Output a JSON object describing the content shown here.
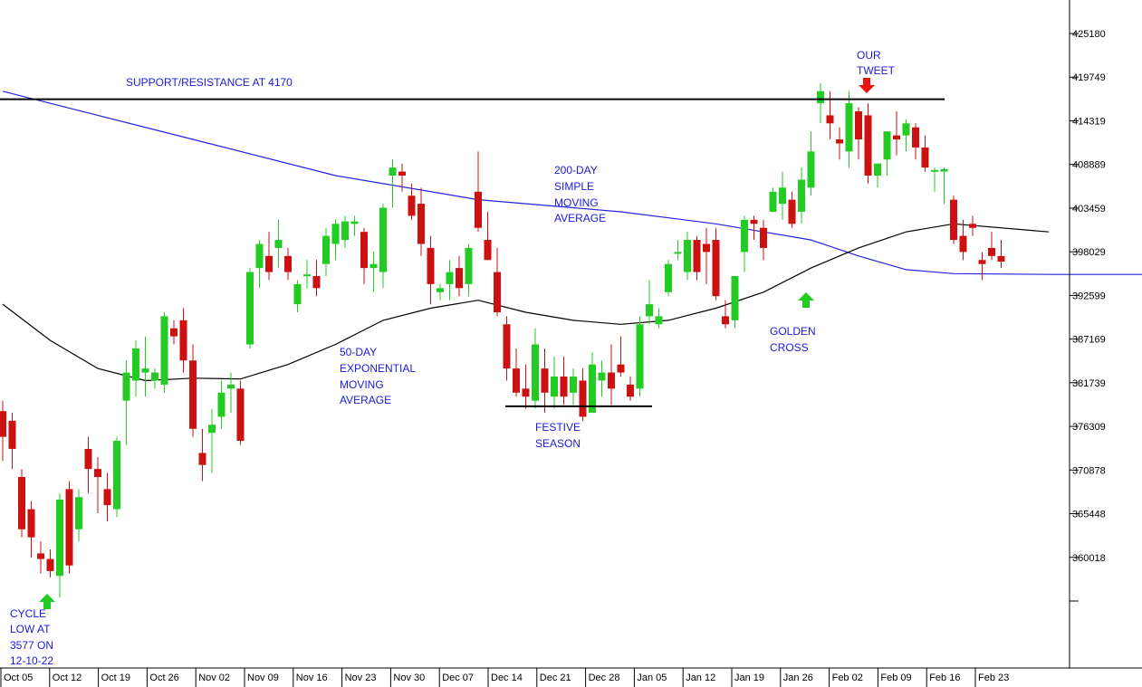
{
  "chart_data": {
    "type": "candlestick",
    "title": "",
    "ylim": [
      355000,
      430000
    ],
    "y_ticks": [
      "425180",
      "419749",
      "414319",
      "408889",
      "403459",
      "398029",
      "392599",
      "387169",
      "381739",
      "376309",
      "370878",
      "365448",
      "360018"
    ],
    "x_ticks": [
      "Oct 05",
      "Oct 12",
      "Oct 19",
      "Oct 26",
      "Nov 02",
      "Nov 09",
      "Nov 16",
      "Nov 23",
      "Nov 30",
      "Dec 07",
      "Dec 14",
      "Dec 21",
      "Dec 28",
      "Jan 05",
      "Jan 12",
      "Jan 19",
      "Jan 26",
      "Feb 02",
      "Feb 09",
      "Feb 16",
      "Feb 23"
    ],
    "colors": {
      "up": "#22cc22",
      "down": "#cc1111",
      "sma200": "#2222dd",
      "ema50": "#000000",
      "annotation": "#1a1adc",
      "arrow_up": "#22cc22",
      "arrow_down": "#ee1111"
    },
    "candles": [
      {
        "o": 378200,
        "h": 379500,
        "l": 372000,
        "c": 375000
      },
      {
        "o": 377000,
        "h": 378000,
        "l": 371000,
        "c": 373500
      },
      {
        "o": 370000,
        "h": 371000,
        "l": 362500,
        "c": 363500
      },
      {
        "o": 366000,
        "h": 367000,
        "l": 360000,
        "c": 362500
      },
      {
        "o": 360500,
        "h": 362000,
        "l": 358000,
        "c": 359800
      },
      {
        "o": 359800,
        "h": 361000,
        "l": 357500,
        "c": 358300
      },
      {
        "o": 357700,
        "h": 368000,
        "l": 355000,
        "c": 367200
      },
      {
        "o": 368500,
        "h": 369500,
        "l": 358000,
        "c": 359000
      },
      {
        "o": 363500,
        "h": 368500,
        "l": 362000,
        "c": 367500
      },
      {
        "o": 373500,
        "h": 375000,
        "l": 368000,
        "c": 371000
      },
      {
        "o": 371000,
        "h": 372500,
        "l": 365500,
        "c": 370000
      },
      {
        "o": 368500,
        "h": 370500,
        "l": 364500,
        "c": 366500
      },
      {
        "o": 366000,
        "h": 375000,
        "l": 365000,
        "c": 374500
      },
      {
        "o": 379500,
        "h": 384500,
        "l": 374000,
        "c": 383000
      },
      {
        "o": 382000,
        "h": 387000,
        "l": 380000,
        "c": 386000
      },
      {
        "o": 383000,
        "h": 387500,
        "l": 380000,
        "c": 383500
      },
      {
        "o": 382000,
        "h": 383500,
        "l": 381000,
        "c": 383000
      },
      {
        "o": 381500,
        "h": 390500,
        "l": 380500,
        "c": 390000
      },
      {
        "o": 388500,
        "h": 389500,
        "l": 386500,
        "c": 387500
      },
      {
        "o": 389500,
        "h": 391000,
        "l": 383000,
        "c": 384500
      },
      {
        "o": 384500,
        "h": 386500,
        "l": 375000,
        "c": 376000
      },
      {
        "o": 373000,
        "h": 376000,
        "l": 369500,
        "c": 371500
      },
      {
        "o": 375500,
        "h": 378500,
        "l": 370500,
        "c": 376500
      },
      {
        "o": 377500,
        "h": 382000,
        "l": 376000,
        "c": 380500
      },
      {
        "o": 381000,
        "h": 383000,
        "l": 378000,
        "c": 381500
      },
      {
        "o": 381000,
        "h": 382000,
        "l": 374000,
        "c": 374500
      },
      {
        "o": 386500,
        "h": 396000,
        "l": 386000,
        "c": 395500
      },
      {
        "o": 396000,
        "h": 399500,
        "l": 393500,
        "c": 399000
      },
      {
        "o": 397500,
        "h": 400500,
        "l": 394500,
        "c": 395500
      },
      {
        "o": 398500,
        "h": 402000,
        "l": 396000,
        "c": 399500
      },
      {
        "o": 397500,
        "h": 398500,
        "l": 394500,
        "c": 395500
      },
      {
        "o": 391500,
        "h": 394500,
        "l": 390500,
        "c": 394000
      },
      {
        "o": 395000,
        "h": 397000,
        "l": 393500,
        "c": 395200
      },
      {
        "o": 395000,
        "h": 397000,
        "l": 392500,
        "c": 393500
      },
      {
        "o": 396500,
        "h": 401000,
        "l": 395000,
        "c": 400000
      },
      {
        "o": 399000,
        "h": 402000,
        "l": 397000,
        "c": 401500
      },
      {
        "o": 399500,
        "h": 402500,
        "l": 398500,
        "c": 401800
      },
      {
        "o": 401500,
        "h": 402500,
        "l": 400000,
        "c": 401800
      },
      {
        "o": 400500,
        "h": 401000,
        "l": 394000,
        "c": 396000
      },
      {
        "o": 396000,
        "h": 398000,
        "l": 393000,
        "c": 396500
      },
      {
        "o": 395500,
        "h": 404000,
        "l": 393500,
        "c": 403500
      },
      {
        "o": 407500,
        "h": 409500,
        "l": 403500,
        "c": 408500
      },
      {
        "o": 408000,
        "h": 409000,
        "l": 405500,
        "c": 407500
      },
      {
        "o": 405000,
        "h": 406500,
        "l": 402000,
        "c": 402500
      },
      {
        "o": 404000,
        "h": 406000,
        "l": 397500,
        "c": 399000
      },
      {
        "o": 398500,
        "h": 400000,
        "l": 391500,
        "c": 394000
      },
      {
        "o": 393000,
        "h": 394000,
        "l": 392000,
        "c": 393500
      },
      {
        "o": 394000,
        "h": 397000,
        "l": 392000,
        "c": 395500
      },
      {
        "o": 396000,
        "h": 397500,
        "l": 392500,
        "c": 393500
      },
      {
        "o": 394000,
        "h": 399000,
        "l": 392500,
        "c": 398500
      },
      {
        "o": 405500,
        "h": 410500,
        "l": 400500,
        "c": 401000
      },
      {
        "o": 399500,
        "h": 403000,
        "l": 397000,
        "c": 397000
      },
      {
        "o": 395500,
        "h": 398500,
        "l": 390000,
        "c": 390500
      },
      {
        "o": 389000,
        "h": 390000,
        "l": 382000,
        "c": 383500
      },
      {
        "o": 383500,
        "h": 386000,
        "l": 380000,
        "c": 380500
      },
      {
        "o": 381000,
        "h": 384000,
        "l": 378500,
        "c": 380000
      },
      {
        "o": 379500,
        "h": 388500,
        "l": 378500,
        "c": 386500
      },
      {
        "o": 383500,
        "h": 386000,
        "l": 378000,
        "c": 380500
      },
      {
        "o": 380000,
        "h": 385000,
        "l": 378500,
        "c": 382500
      },
      {
        "o": 382500,
        "h": 385000,
        "l": 379000,
        "c": 380000
      },
      {
        "o": 380500,
        "h": 383500,
        "l": 379000,
        "c": 382500
      },
      {
        "o": 382000,
        "h": 383500,
        "l": 377000,
        "c": 377500
      },
      {
        "o": 378000,
        "h": 385500,
        "l": 378000,
        "c": 384000
      },
      {
        "o": 382000,
        "h": 384500,
        "l": 380000,
        "c": 383000
      },
      {
        "o": 383000,
        "h": 386500,
        "l": 379000,
        "c": 381000
      },
      {
        "o": 384000,
        "h": 387500,
        "l": 382500,
        "c": 383000
      },
      {
        "o": 381500,
        "h": 382500,
        "l": 379500,
        "c": 380000
      },
      {
        "o": 381000,
        "h": 390000,
        "l": 380000,
        "c": 389000
      },
      {
        "o": 390000,
        "h": 394500,
        "l": 389000,
        "c": 391500
      },
      {
        "o": 389000,
        "h": 391000,
        "l": 388500,
        "c": 390000
      },
      {
        "o": 393000,
        "h": 397000,
        "l": 392500,
        "c": 396500
      },
      {
        "o": 398000,
        "h": 399500,
        "l": 397000,
        "c": 398000
      },
      {
        "o": 395500,
        "h": 400500,
        "l": 394500,
        "c": 399500
      },
      {
        "o": 399500,
        "h": 400000,
        "l": 394500,
        "c": 395500
      },
      {
        "o": 399000,
        "h": 401000,
        "l": 394000,
        "c": 398000
      },
      {
        "o": 399500,
        "h": 401000,
        "l": 392000,
        "c": 392500
      },
      {
        "o": 390000,
        "h": 392000,
        "l": 388500,
        "c": 389000
      },
      {
        "o": 389500,
        "h": 395000,
        "l": 388500,
        "c": 395000
      },
      {
        "o": 398000,
        "h": 402500,
        "l": 395500,
        "c": 402000
      },
      {
        "o": 402000,
        "h": 402500,
        "l": 399500,
        "c": 401500
      },
      {
        "o": 401000,
        "h": 402000,
        "l": 397000,
        "c": 398500
      },
      {
        "o": 403000,
        "h": 406000,
        "l": 403000,
        "c": 405500
      },
      {
        "o": 404000,
        "h": 408000,
        "l": 402000,
        "c": 406000
      },
      {
        "o": 404500,
        "h": 405500,
        "l": 401000,
        "c": 401500
      },
      {
        "o": 403000,
        "h": 408500,
        "l": 401500,
        "c": 407000
      },
      {
        "o": 406000,
        "h": 413000,
        "l": 405000,
        "c": 410500
      },
      {
        "o": 416500,
        "h": 419000,
        "l": 414000,
        "c": 418000
      },
      {
        "o": 415000,
        "h": 418000,
        "l": 412000,
        "c": 414000
      },
      {
        "o": 412000,
        "h": 413500,
        "l": 409500,
        "c": 411500
      },
      {
        "o": 410500,
        "h": 418000,
        "l": 408500,
        "c": 416500
      },
      {
        "o": 415500,
        "h": 416000,
        "l": 409500,
        "c": 412000
      },
      {
        "o": 415000,
        "h": 416500,
        "l": 406500,
        "c": 407500
      },
      {
        "o": 407500,
        "h": 409000,
        "l": 406000,
        "c": 409000
      },
      {
        "o": 409500,
        "h": 413000,
        "l": 407500,
        "c": 413000
      },
      {
        "o": 412500,
        "h": 415500,
        "l": 410000,
        "c": 412000
      },
      {
        "o": 412500,
        "h": 414500,
        "l": 410500,
        "c": 414000
      },
      {
        "o": 413500,
        "h": 414000,
        "l": 409500,
        "c": 411000
      },
      {
        "o": 411000,
        "h": 412500,
        "l": 408000,
        "c": 408500
      },
      {
        "o": 408000,
        "h": 408500,
        "l": 405500,
        "c": 408200
      },
      {
        "o": 408000,
        "h": 408500,
        "l": 404000,
        "c": 408300
      },
      {
        "o": 404500,
        "h": 405000,
        "l": 399000,
        "c": 399500
      },
      {
        "o": 400000,
        "h": 402000,
        "l": 397000,
        "c": 398000
      },
      {
        "o": 401500,
        "h": 402500,
        "l": 400000,
        "c": 401000
      },
      {
        "o": 397000,
        "h": 398000,
        "l": 394500,
        "c": 396500
      },
      {
        "o": 398500,
        "h": 400500,
        "l": 397000,
        "c": 397500
      },
      {
        "o": 397500,
        "h": 399500,
        "l": 396000,
        "c": 396800
      }
    ],
    "sma200": [
      [
        0,
        418000
      ],
      [
        10,
        415000
      ],
      [
        20,
        412000
      ],
      [
        35,
        407500
      ],
      [
        50,
        404500
      ],
      [
        65,
        403000
      ],
      [
        75,
        401500
      ],
      [
        85,
        399500
      ],
      [
        90,
        397500
      ],
      [
        95,
        395800
      ],
      [
        100,
        395300
      ],
      [
        110,
        395200
      ],
      [
        120,
        395200
      ]
    ],
    "ema50": [
      [
        0,
        391500
      ],
      [
        5,
        387000
      ],
      [
        10,
        383500
      ],
      [
        15,
        382000
      ],
      [
        20,
        382300
      ],
      [
        25,
        382200
      ],
      [
        30,
        384000
      ],
      [
        35,
        386500
      ],
      [
        40,
        389500
      ],
      [
        45,
        391000
      ],
      [
        50,
        392000
      ],
      [
        55,
        390500
      ],
      [
        60,
        389500
      ],
      [
        65,
        389000
      ],
      [
        70,
        389500
      ],
      [
        75,
        391000
      ],
      [
        80,
        393000
      ],
      [
        85,
        396000
      ],
      [
        90,
        398500
      ],
      [
        95,
        400500
      ],
      [
        100,
        401500
      ],
      [
        110,
        400500
      ]
    ],
    "hlines": [
      {
        "value": 417000,
        "from": 0,
        "to": 1043
      },
      {
        "value": 378800,
        "from": 558,
        "to": 720
      }
    ],
    "annotations": {
      "support": "SUPPORT/RESISTANCE AT 4170",
      "our_tweet": [
        "OUR",
        "TWEET"
      ],
      "sma200": [
        "200-DAY",
        "SIMPLE",
        "MOVING",
        "AVERAGE"
      ],
      "ema50": [
        "50-DAY",
        "EXPONENTIAL",
        "MOVING",
        "AVERAGE"
      ],
      "festive": [
        "FESTIVE",
        "SEASON"
      ],
      "golden": [
        "GOLDEN",
        "CROSS"
      ],
      "cycle": [
        "CYCLE",
        "LOW AT",
        "3577 ON",
        "12-10-22"
      ]
    }
  }
}
